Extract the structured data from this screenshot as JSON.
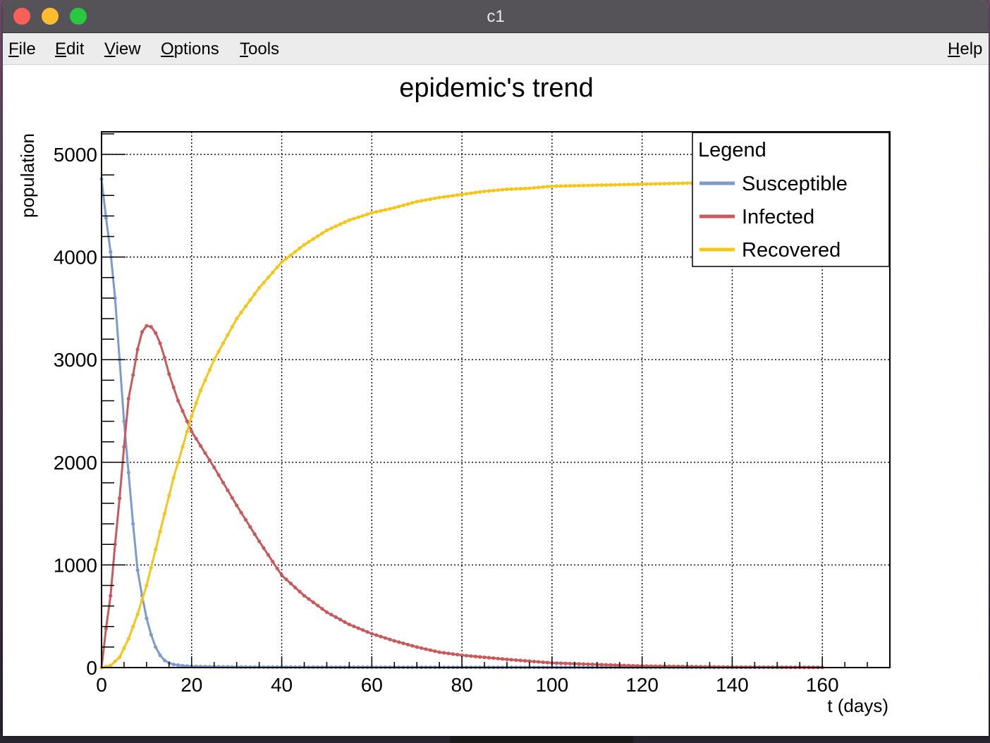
{
  "window": {
    "title": "c1"
  },
  "menu": {
    "file": "File",
    "edit": "Edit",
    "view": "View",
    "options": "Options",
    "tools": "Tools",
    "help": "Help"
  },
  "colors": {
    "susceptible": "#7b9bd0",
    "infected": "#c85a5c",
    "recovered": "#f5c518"
  },
  "chart_data": {
    "type": "line",
    "title": "epidemic's trend",
    "xlabel": "t (days)",
    "ylabel": "population",
    "xlim": [
      0,
      175
    ],
    "ylim": [
      0,
      5220
    ],
    "xticks": [
      0,
      20,
      40,
      60,
      80,
      100,
      120,
      140,
      160
    ],
    "yticks": [
      0,
      1000,
      2000,
      3000,
      4000,
      5000
    ],
    "grid": true,
    "legend": {
      "title": "Legend",
      "placement": "top-right"
    },
    "series": [
      {
        "name": "Susceptible",
        "color": "#7b9bd0",
        "points": [
          [
            0,
            4760
          ],
          [
            1,
            4380
          ],
          [
            2,
            4050
          ],
          [
            3,
            3600
          ],
          [
            4,
            3000
          ],
          [
            5,
            2400
          ],
          [
            6,
            1900
          ],
          [
            7,
            1400
          ],
          [
            8,
            950
          ],
          [
            9,
            700
          ],
          [
            10,
            480
          ],
          [
            11,
            320
          ],
          [
            12,
            200
          ],
          [
            13,
            120
          ],
          [
            14,
            70
          ],
          [
            15,
            45
          ],
          [
            16,
            30
          ],
          [
            18,
            18
          ],
          [
            20,
            12
          ],
          [
            25,
            8
          ],
          [
            30,
            6
          ],
          [
            40,
            5
          ],
          [
            60,
            4
          ],
          [
            80,
            3
          ],
          [
            100,
            2
          ],
          [
            130,
            2
          ],
          [
            160,
            2
          ]
        ]
      },
      {
        "name": "Infected",
        "color": "#c85a5c",
        "points": [
          [
            0,
            0
          ],
          [
            1,
            380
          ],
          [
            2,
            700
          ],
          [
            3,
            1200
          ],
          [
            4,
            1650
          ],
          [
            5,
            2150
          ],
          [
            6,
            2620
          ],
          [
            7,
            2850
          ],
          [
            8,
            3100
          ],
          [
            9,
            3270
          ],
          [
            10,
            3330
          ],
          [
            11,
            3320
          ],
          [
            12,
            3260
          ],
          [
            13,
            3160
          ],
          [
            14,
            3020
          ],
          [
            15,
            2860
          ],
          [
            17,
            2600
          ],
          [
            20,
            2300
          ],
          [
            25,
            1950
          ],
          [
            30,
            1580
          ],
          [
            35,
            1230
          ],
          [
            40,
            900
          ],
          [
            45,
            700
          ],
          [
            50,
            540
          ],
          [
            55,
            420
          ],
          [
            60,
            330
          ],
          [
            65,
            260
          ],
          [
            70,
            200
          ],
          [
            75,
            150
          ],
          [
            80,
            120
          ],
          [
            90,
            80
          ],
          [
            100,
            45
          ],
          [
            110,
            30
          ],
          [
            120,
            15
          ],
          [
            140,
            5
          ],
          [
            160,
            2
          ]
        ]
      },
      {
        "name": "Recovered",
        "color": "#f5c518",
        "points": [
          [
            0,
            0
          ],
          [
            2,
            20
          ],
          [
            4,
            100
          ],
          [
            6,
            280
          ],
          [
            8,
            520
          ],
          [
            10,
            800
          ],
          [
            12,
            1150
          ],
          [
            14,
            1500
          ],
          [
            16,
            1850
          ],
          [
            18,
            2150
          ],
          [
            20,
            2450
          ],
          [
            22,
            2700
          ],
          [
            25,
            3000
          ],
          [
            30,
            3400
          ],
          [
            35,
            3700
          ],
          [
            40,
            3950
          ],
          [
            45,
            4120
          ],
          [
            50,
            4260
          ],
          [
            55,
            4360
          ],
          [
            60,
            4430
          ],
          [
            65,
            4480
          ],
          [
            70,
            4540
          ],
          [
            75,
            4580
          ],
          [
            80,
            4610
          ],
          [
            85,
            4640
          ],
          [
            90,
            4660
          ],
          [
            95,
            4670
          ],
          [
            100,
            4690
          ],
          [
            110,
            4700
          ],
          [
            120,
            4710
          ],
          [
            130,
            4720
          ],
          [
            140,
            4725
          ],
          [
            150,
            4725
          ],
          [
            160,
            4730
          ]
        ]
      }
    ]
  }
}
